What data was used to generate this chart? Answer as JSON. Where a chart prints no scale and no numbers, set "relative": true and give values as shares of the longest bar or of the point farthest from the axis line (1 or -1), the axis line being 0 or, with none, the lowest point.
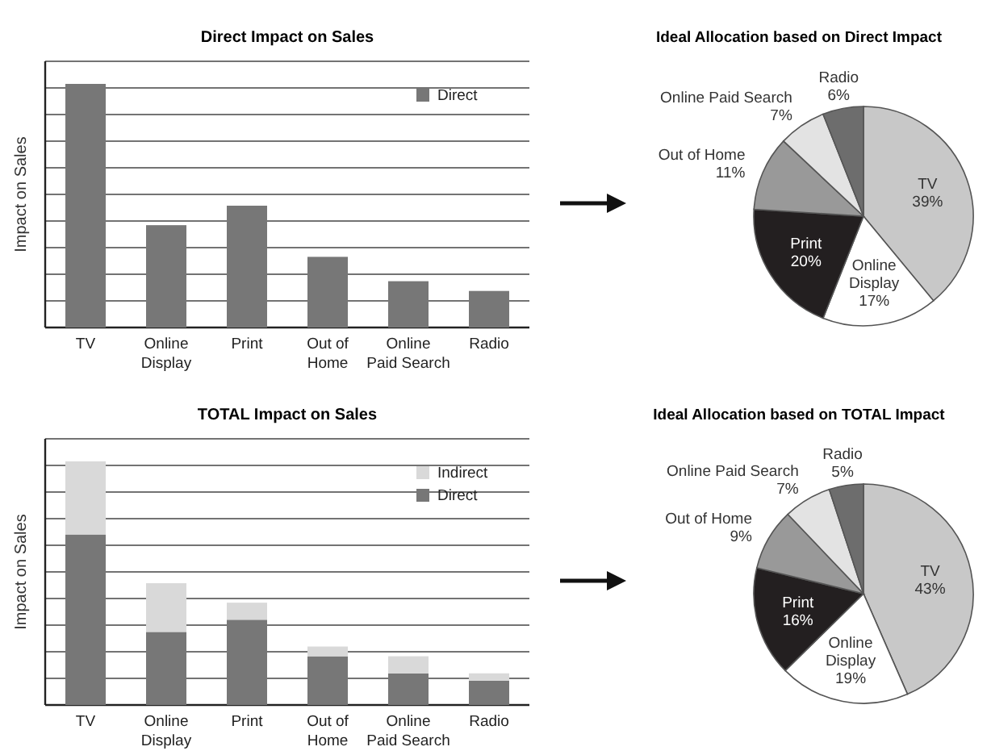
{
  "chart_data": [
    {
      "type": "bar",
      "title": "Direct Impact on Sales",
      "ylabel": "Impact on Sales",
      "categories": [
        "TV",
        "Online Display",
        "Print",
        "Out of Home",
        "Online Paid Search",
        "Radio"
      ],
      "relative": true,
      "grid": true,
      "legend": "top right",
      "series": [
        {
          "name": "Direct",
          "color": "#777777",
          "values": [
            1,
            0.42,
            0.5,
            0.29,
            0.19,
            0.15
          ]
        }
      ]
    },
    {
      "type": "pie",
      "title": "Ideal Allocation based on Direct Impact",
      "categories": [
        "TV",
        "Online Display",
        "Print",
        "Out of Home",
        "Online Paid Search",
        "Radio"
      ],
      "values": [
        39,
        17,
        20,
        11,
        7,
        6
      ],
      "value_labels": [
        "39%",
        "17%",
        "20%",
        "11%",
        "7%",
        "6%"
      ],
      "colors": [
        "#c8c8c8",
        "#ffffff",
        "#231f20",
        "#999999",
        "#e3e3e3",
        "#6d6d6d"
      ]
    },
    {
      "type": "bar",
      "title": "TOTAL Impact on Sales",
      "ylabel": "Impact on Sales",
      "categories": [
        "TV",
        "Online Display",
        "Print",
        "Out of Home",
        "Online Paid Search",
        "Radio"
      ],
      "relative": true,
      "grid": true,
      "legend": "top right",
      "stacked": true,
      "series": [
        {
          "name": "Direct",
          "color": "#777777",
          "values": [
            0.7,
            0.3,
            0.35,
            0.2,
            0.13,
            0.1
          ]
        },
        {
          "name": "Indirect",
          "color": "#d9d9d9",
          "values": [
            0.3,
            0.2,
            0.07,
            0.04,
            0.07,
            0.03
          ]
        }
      ]
    },
    {
      "type": "pie",
      "title": "Ideal Allocation based on TOTAL Impact",
      "categories": [
        "TV",
        "Online Display",
        "Print",
        "Out of Home",
        "Online Paid Search",
        "Radio"
      ],
      "values": [
        43,
        19,
        16,
        9,
        7,
        5
      ],
      "value_labels": [
        "43%",
        "19%",
        "16%",
        "9%",
        "7%",
        "5%"
      ],
      "colors": [
        "#c8c8c8",
        "#ffffff",
        "#231f20",
        "#999999",
        "#e3e3e3",
        "#6d6d6d"
      ]
    }
  ]
}
